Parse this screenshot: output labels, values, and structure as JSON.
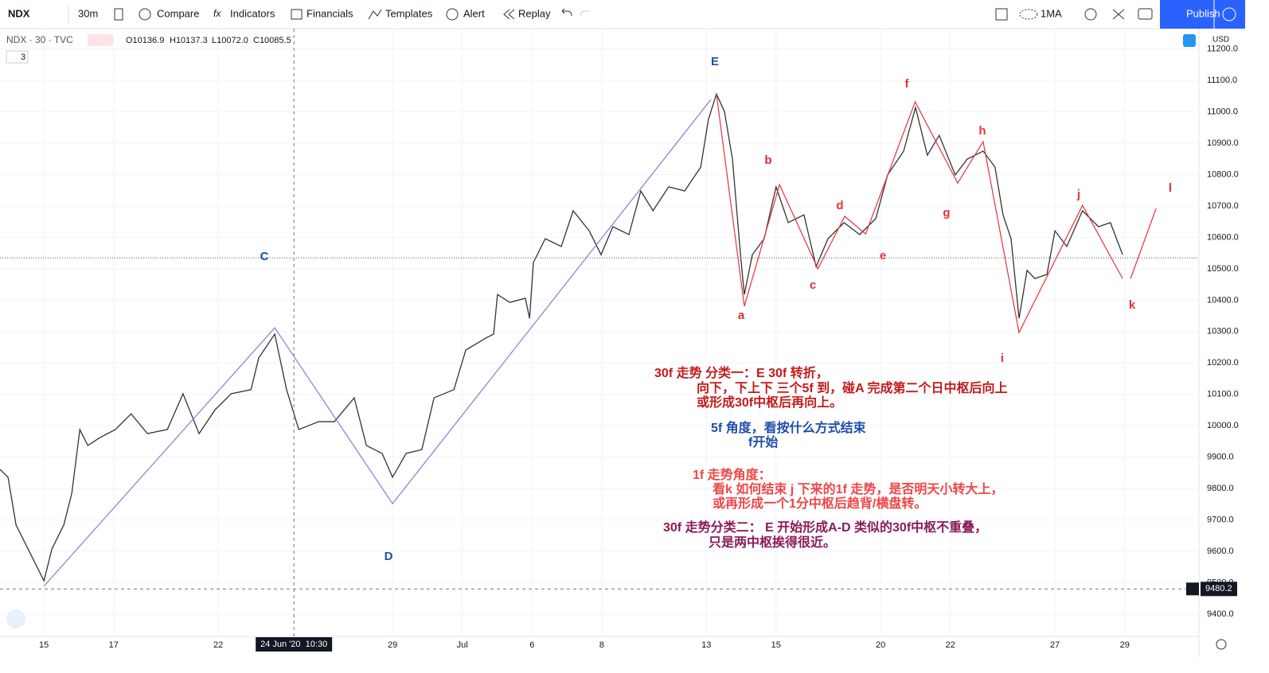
{
  "toolbar": {
    "symbol": "NDX",
    "interval": "30m",
    "items": [
      "Compare",
      "Indicators",
      "Financials",
      "Templates",
      "Alert",
      "Replay"
    ],
    "layout": "1MA",
    "publish": "Publish"
  },
  "legend": {
    "title": "NDX · 30 · TVC",
    "open": "O10136.9",
    "high": "H10137.3",
    "low": "L10072.0",
    "close": "C10085.5",
    "count": "3"
  },
  "chart_data": {
    "type": "line",
    "currency": "USD",
    "xlim": [
      -1.26,
      33.13
    ],
    "ylim": [
      9329,
      11265
    ],
    "xticks": [
      {
        "value": 0,
        "label": "15"
      },
      {
        "value": 2,
        "label": "17"
      },
      {
        "value": 5,
        "label": "22"
      },
      {
        "value": 10,
        "label": "29"
      },
      {
        "value": 12,
        "label": "Jul"
      },
      {
        "value": 14,
        "label": "6"
      },
      {
        "value": 16,
        "label": "8"
      },
      {
        "value": 19,
        "label": "13"
      },
      {
        "value": 21,
        "label": "15"
      },
      {
        "value": 24,
        "label": "20"
      },
      {
        "value": 26,
        "label": "22"
      },
      {
        "value": 29,
        "label": "27"
      },
      {
        "value": 31,
        "label": "29"
      }
    ],
    "yticks": [
      {
        "value": 9400,
        "label": "9400.0"
      },
      {
        "value": 9500,
        "label": "9500.0"
      },
      {
        "value": 9600,
        "label": "9600.0"
      },
      {
        "value": 9700,
        "label": "9700.0"
      },
      {
        "value": 9800,
        "label": "9800.0"
      },
      {
        "value": 9900,
        "label": "9900.0"
      },
      {
        "value": 10000,
        "label": "10000.0"
      },
      {
        "value": 10100,
        "label": "10100.0"
      },
      {
        "value": 10200,
        "label": "10200.0"
      },
      {
        "value": 10300,
        "label": "10300.0"
      },
      {
        "value": 10400,
        "label": "10400.0"
      },
      {
        "value": 10500,
        "label": "10500.0"
      },
      {
        "value": 10600,
        "label": "10600.0"
      },
      {
        "value": 10700,
        "label": "10700.0"
      },
      {
        "value": 10800,
        "label": "10800.0"
      },
      {
        "value": 10900,
        "label": "10900.0"
      },
      {
        "value": 11000,
        "label": "11000.0"
      },
      {
        "value": 11100,
        "label": "11100.0"
      },
      {
        "value": 11200,
        "label": "11200.0"
      }
    ],
    "grid": true,
    "price": {
      "color": "#333333",
      "x": [
        -1.26,
        -1.03,
        -0.8,
        -0.34,
        0,
        0.23,
        0.57,
        0.8,
        1.03,
        1.26,
        1.6,
        2.05,
        2.5,
        2.97,
        3.54,
        3.99,
        4.45,
        4.91,
        5.37,
        5.94,
        6.16,
        6.62,
        6.96,
        7.31,
        7.88,
        8.33,
        8.9,
        9.25,
        9.7,
        10,
        10.39,
        10.84,
        11.19,
        11.76,
        12.1,
        12.67,
        12.9,
        13.01,
        13.36,
        13.81,
        13.93,
        14.04,
        14.38,
        14.84,
        15.18,
        15.64,
        15.98,
        16.32,
        16.78,
        17.12,
        17.47,
        17.92,
        18.38,
        18.84,
        19.06,
        19.29,
        19.52,
        19.75,
        19.98,
        20.09,
        20.32,
        20.66,
        21.0,
        21.35,
        21.8,
        22.15,
        22.49,
        22.95,
        23.4,
        23.86,
        24.2,
        24.66,
        25.0,
        25.34,
        25.68,
        26.14,
        26.48,
        26.94,
        27.28,
        27.51,
        27.74,
        27.97,
        28.2,
        28.42,
        28.77,
        29.0,
        29.34,
        29.79,
        30.25,
        30.59,
        30.94
      ],
      "values": [
        9861,
        9836,
        9684,
        9582,
        9506,
        9608,
        9684,
        9785,
        9988,
        9937,
        9962,
        9988,
        10038,
        9975,
        9988,
        10102,
        9975,
        10051,
        10102,
        10115,
        10216,
        10292,
        10115,
        9988,
        10013,
        10013,
        10089,
        9937,
        9912,
        9836,
        9912,
        9924,
        10089,
        10115,
        10241,
        10279,
        10292,
        10418,
        10393,
        10406,
        10342,
        10520,
        10596,
        10571,
        10685,
        10621,
        10545,
        10634,
        10609,
        10748,
        10685,
        10761,
        10748,
        10824,
        10976,
        11057,
        11001,
        10849,
        10545,
        10418,
        10545,
        10596,
        10761,
        10647,
        10672,
        10507,
        10596,
        10647,
        10609,
        10660,
        10799,
        10875,
        11014,
        10862,
        10925,
        10799,
        10849,
        10875,
        10824,
        10672,
        10596,
        10342,
        10495,
        10469,
        10482,
        10621,
        10571,
        10685,
        10634,
        10647,
        10545
      ]
    },
    "waves": [
      {
        "color": "#7d7de0",
        "x": [
          0,
          6.62,
          10,
          19.13
        ],
        "values": [
          9489,
          10312,
          9752,
          11039
        ]
      },
      {
        "color": "#e8323c",
        "x": [
          19.29,
          20.09,
          21.1,
          22.2,
          22.97,
          23.57,
          24.99,
          26.21,
          26.94,
          27.97,
          29.79,
          30.94
        ],
        "values": [
          11057,
          10381,
          10768,
          10500,
          10667,
          10611,
          11032,
          10773,
          10905,
          10297,
          10702,
          10469
        ]
      },
      {
        "color": "#e8323c",
        "x": [
          31.17,
          31.9
        ],
        "values": [
          10469,
          10692
        ]
      }
    ],
    "wave_labels": {
      "E": "E",
      "C": "C",
      "D": "D",
      "a": "a",
      "b": "b",
      "c": "c",
      "d": "d",
      "e": "e",
      "f": "f",
      "g": "g",
      "h": "h",
      "i": "i",
      "j": "j",
      "k": "k",
      "l": "l"
    },
    "last_price": 10535,
    "crosshair": {
      "x": 7.17,
      "value": 9480.2,
      "x_label": "24 Jun '20  10:30"
    },
    "annotations": [
      "30f 走势 分类一：E 30f 转折，",
      "向下，下上下 三个5f 到，碰A 完成第二个日中枢后向上",
      "或形成30f中枢后再向上。",
      "5f 角度，看按什么方式结束",
      "f开始",
      "1f 走势角度：",
      "看k 如何结束 j 下来的1f  走势，是否明天小转大上，",
      "或再形成一个1分中枢后趋背/横盘转。",
      "30f 走势分类二：  E 开始形成A-D 类似的30f中枢不重叠，",
      "只是两中枢挨得很近。"
    ]
  }
}
